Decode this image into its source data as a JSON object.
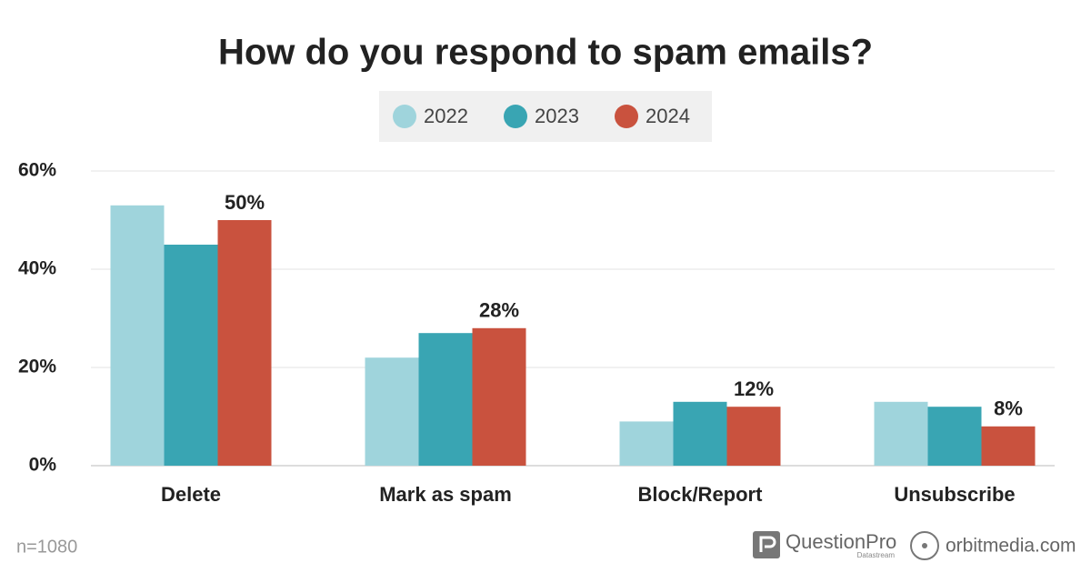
{
  "chart_data": {
    "type": "bar",
    "title": "How do you respond to spam emails?",
    "categories": [
      "Delete",
      "Mark as spam",
      "Block/Report",
      "Unsubscribe"
    ],
    "series": [
      {
        "name": "2022",
        "color": "#9fd4dc",
        "values": [
          53,
          22,
          9,
          13
        ]
      },
      {
        "name": "2023",
        "color": "#39a5b3",
        "values": [
          45,
          27,
          13,
          12
        ]
      },
      {
        "name": "2024",
        "color": "#c9523e",
        "values": [
          50,
          28,
          12,
          8
        ],
        "value_labels": [
          "50%",
          "28%",
          "12%",
          "8%"
        ]
      }
    ],
    "ylim": [
      0,
      60
    ],
    "yticks": [
      {
        "value": 0,
        "label": "0%"
      },
      {
        "value": 20,
        "label": "20%"
      },
      {
        "value": 40,
        "label": "40%"
      },
      {
        "value": 60,
        "label": "60%"
      }
    ],
    "grid": true,
    "legend": "top"
  },
  "footer": {
    "note": "n=1080",
    "brand1": "QuestionPro",
    "brand1_sub": "Datastream",
    "brand2": "orbitmedia.com"
  }
}
